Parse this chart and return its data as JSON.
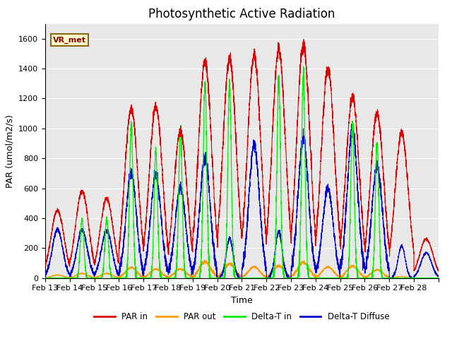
{
  "title": "Photosynthetic Active Radiation",
  "xlabel": "Time",
  "ylabel": "PAR (umol/m2/s)",
  "ylim": [
    0,
    1700
  ],
  "yticks": [
    0,
    200,
    400,
    600,
    800,
    1000,
    1200,
    1400,
    1600
  ],
  "date_labels": [
    "Feb 13",
    "Feb 14",
    "Feb 15",
    "Feb 16",
    "Feb 17",
    "Feb 18",
    "Feb 19",
    "Feb 20",
    "Feb 21",
    "Feb 22",
    "Feb 23",
    "Feb 24",
    "Feb 25",
    "Feb 26",
    "Feb 27",
    "Feb 28"
  ],
  "station_label": "VR_met",
  "bg_color": "#e8e8e8",
  "line_colors": {
    "par_in": "#dd0000",
    "par_out": "#ff9900",
    "delta_t_in": "#00ee00",
    "delta_t_diffuse": "#0000cc"
  },
  "legend": [
    "PAR in",
    "PAR out",
    "Delta-T in",
    "Delta-T Diffuse"
  ],
  "day_peaks": {
    "par_in": [
      450,
      580,
      530,
      1130,
      1150,
      980,
      1450,
      1470,
      1490,
      1530,
      1560,
      1400,
      1210,
      1100,
      970,
      260
    ],
    "par_out": [
      20,
      30,
      30,
      70,
      60,
      60,
      110,
      95,
      75,
      80,
      105,
      75,
      80,
      55,
      10,
      0
    ],
    "delta_t_in": [
      0,
      400,
      400,
      1020,
      850,
      1000,
      1300,
      1300,
      0,
      1340,
      1350,
      0,
      1030,
      900,
      0,
      0
    ],
    "delta_t_diffuse_ratio": [
      0.72,
      0.55,
      0.6,
      0.62,
      0.6,
      0.62,
      0.55,
      0.18,
      0.6,
      0.2,
      0.6,
      0.43,
      0.82,
      0.68,
      0.22,
      0.65
    ]
  },
  "n_days": 16,
  "pts_per_day": 288,
  "title_fontsize": 12,
  "label_fontsize": 9,
  "tick_fontsize": 8
}
